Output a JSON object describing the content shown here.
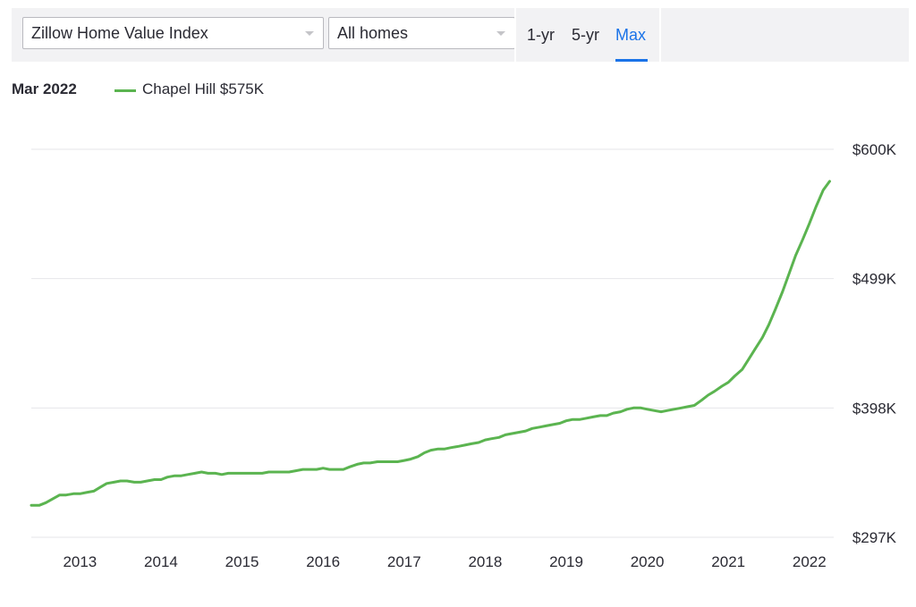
{
  "toolbar": {
    "metric_select": {
      "value": "Zillow Home Value Index"
    },
    "homes_select": {
      "value": "All homes"
    },
    "ranges": [
      "1-yr",
      "5-yr",
      "Max"
    ],
    "active_range": "Max",
    "accent_color": "#1a73e8"
  },
  "legend": {
    "date": "Mar 2022",
    "series_label": "Chapel Hill $575K",
    "line_color": "#5bb450"
  },
  "chart_data": {
    "type": "line",
    "title": "",
    "xlabel": "",
    "ylabel": "",
    "x_ticks": [
      "2013",
      "2014",
      "2015",
      "2016",
      "2017",
      "2018",
      "2019",
      "2020",
      "2021",
      "2022"
    ],
    "y_ticks": [
      "$297K",
      "$398K",
      "$499K",
      "$600K"
    ],
    "y_tick_values": [
      297,
      398,
      499,
      600
    ],
    "ylim": [
      297,
      600
    ],
    "xlim": [
      2012.4,
      2022.3
    ],
    "grid": true,
    "y_axis_side": "right",
    "legend_position": "top-left",
    "series": [
      {
        "name": "Chapel Hill",
        "color": "#5bb450",
        "points": [
          [
            2012.4,
            322
          ],
          [
            2012.5,
            322
          ],
          [
            2012.58,
            324
          ],
          [
            2012.75,
            330
          ],
          [
            2012.83,
            330
          ],
          [
            2012.92,
            331
          ],
          [
            2013.0,
            331
          ],
          [
            2013.08,
            332
          ],
          [
            2013.17,
            333
          ],
          [
            2013.25,
            336
          ],
          [
            2013.33,
            339
          ],
          [
            2013.42,
            340
          ],
          [
            2013.5,
            341
          ],
          [
            2013.58,
            341
          ],
          [
            2013.67,
            340
          ],
          [
            2013.75,
            340
          ],
          [
            2013.83,
            341
          ],
          [
            2013.92,
            342
          ],
          [
            2014.0,
            342
          ],
          [
            2014.08,
            344
          ],
          [
            2014.17,
            345
          ],
          [
            2014.25,
            345
          ],
          [
            2014.33,
            346
          ],
          [
            2014.42,
            347
          ],
          [
            2014.5,
            348
          ],
          [
            2014.58,
            347
          ],
          [
            2014.67,
            347
          ],
          [
            2014.75,
            346
          ],
          [
            2014.83,
            347
          ],
          [
            2014.92,
            347
          ],
          [
            2015.0,
            347
          ],
          [
            2015.08,
            347
          ],
          [
            2015.17,
            347
          ],
          [
            2015.25,
            347
          ],
          [
            2015.33,
            348
          ],
          [
            2015.42,
            348
          ],
          [
            2015.5,
            348
          ],
          [
            2015.58,
            348
          ],
          [
            2015.67,
            349
          ],
          [
            2015.75,
            350
          ],
          [
            2015.83,
            350
          ],
          [
            2015.92,
            350
          ],
          [
            2016.0,
            351
          ],
          [
            2016.08,
            350
          ],
          [
            2016.17,
            350
          ],
          [
            2016.25,
            350
          ],
          [
            2016.33,
            352
          ],
          [
            2016.42,
            354
          ],
          [
            2016.5,
            355
          ],
          [
            2016.58,
            355
          ],
          [
            2016.67,
            356
          ],
          [
            2016.75,
            356
          ],
          [
            2016.83,
            356
          ],
          [
            2016.92,
            356
          ],
          [
            2017.0,
            357
          ],
          [
            2017.08,
            358
          ],
          [
            2017.17,
            360
          ],
          [
            2017.25,
            363
          ],
          [
            2017.33,
            365
          ],
          [
            2017.42,
            366
          ],
          [
            2017.5,
            366
          ],
          [
            2017.58,
            367
          ],
          [
            2017.67,
            368
          ],
          [
            2017.75,
            369
          ],
          [
            2017.83,
            370
          ],
          [
            2017.92,
            371
          ],
          [
            2018.0,
            373
          ],
          [
            2018.08,
            374
          ],
          [
            2018.17,
            375
          ],
          [
            2018.25,
            377
          ],
          [
            2018.33,
            378
          ],
          [
            2018.42,
            379
          ],
          [
            2018.5,
            380
          ],
          [
            2018.58,
            382
          ],
          [
            2018.67,
            383
          ],
          [
            2018.75,
            384
          ],
          [
            2018.83,
            385
          ],
          [
            2018.92,
            386
          ],
          [
            2019.0,
            388
          ],
          [
            2019.08,
            389
          ],
          [
            2019.17,
            389
          ],
          [
            2019.25,
            390
          ],
          [
            2019.33,
            391
          ],
          [
            2019.42,
            392
          ],
          [
            2019.5,
            392
          ],
          [
            2019.58,
            394
          ],
          [
            2019.67,
            395
          ],
          [
            2019.75,
            397
          ],
          [
            2019.83,
            398
          ],
          [
            2019.92,
            398
          ],
          [
            2020.0,
            397
          ],
          [
            2020.08,
            396
          ],
          [
            2020.17,
            395
          ],
          [
            2020.25,
            396
          ],
          [
            2020.33,
            397
          ],
          [
            2020.42,
            398
          ],
          [
            2020.5,
            399
          ],
          [
            2020.58,
            400
          ],
          [
            2020.67,
            404
          ],
          [
            2020.75,
            408
          ],
          [
            2020.83,
            411
          ],
          [
            2020.92,
            415
          ],
          [
            2021.0,
            418
          ],
          [
            2021.08,
            423
          ],
          [
            2021.17,
            428
          ],
          [
            2021.25,
            436
          ],
          [
            2021.33,
            444
          ],
          [
            2021.42,
            453
          ],
          [
            2021.5,
            463
          ],
          [
            2021.58,
            475
          ],
          [
            2021.67,
            489
          ],
          [
            2021.75,
            503
          ],
          [
            2021.83,
            517
          ],
          [
            2021.92,
            530
          ],
          [
            2022.0,
            542
          ],
          [
            2022.08,
            555
          ],
          [
            2022.17,
            568
          ],
          [
            2022.25,
            575
          ]
        ]
      }
    ]
  }
}
